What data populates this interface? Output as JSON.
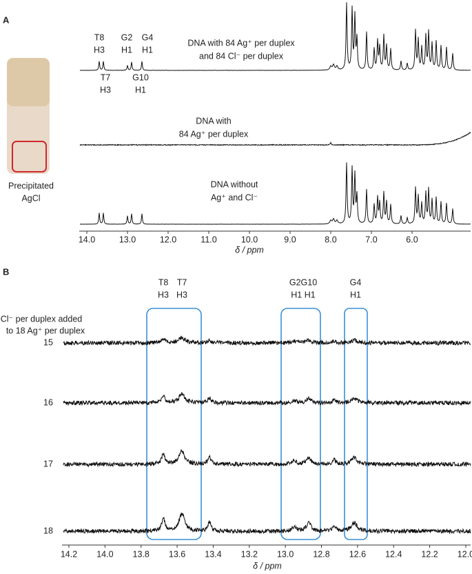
{
  "panel_a": {
    "label": "A",
    "image_caption": [
      "Precipitated",
      "AgCl"
    ],
    "peak_labels": [
      [
        "T8",
        "H3"
      ],
      [
        "G2",
        "H1"
      ],
      [
        "G4",
        "H1"
      ],
      [
        "T7",
        "H3"
      ],
      [
        "G10",
        "H1"
      ]
    ],
    "spectrum_labels": [
      [
        "DNA with 84 Ag⁺ per duplex",
        "and 84 Cl⁻ per duplex"
      ],
      [
        "DNA with",
        "84 Ag⁺ per duplex"
      ],
      [
        "DNA without",
        "Ag⁺ and Cl⁻"
      ]
    ],
    "axis": {
      "ticks": [
        "14.0",
        "13.0",
        "12.0",
        "11.0",
        "10.0",
        "9.0",
        "8.0",
        "7.0",
        "6.0"
      ],
      "label": "δ / ppm"
    }
  },
  "panel_b": {
    "label": "B",
    "row_title": [
      "Cl⁻ per duplex added",
      "to 18 Ag⁺ per duplex"
    ],
    "rows": [
      "15",
      "16",
      "17",
      "18"
    ],
    "peak_labels": [
      [
        "T8",
        "H3"
      ],
      [
        "T7",
        "H3"
      ],
      [
        "G2G10",
        "H1  H1"
      ],
      [
        "G4",
        "H1"
      ]
    ],
    "axis": {
      "ticks": [
        "14.2",
        "14.0",
        "13.8",
        "13.6",
        "13.4",
        "13.2",
        "13.0",
        "12.8",
        "12.6",
        "12.4",
        "12.2",
        "12.0"
      ],
      "label": "δ / ppm"
    }
  }
}
